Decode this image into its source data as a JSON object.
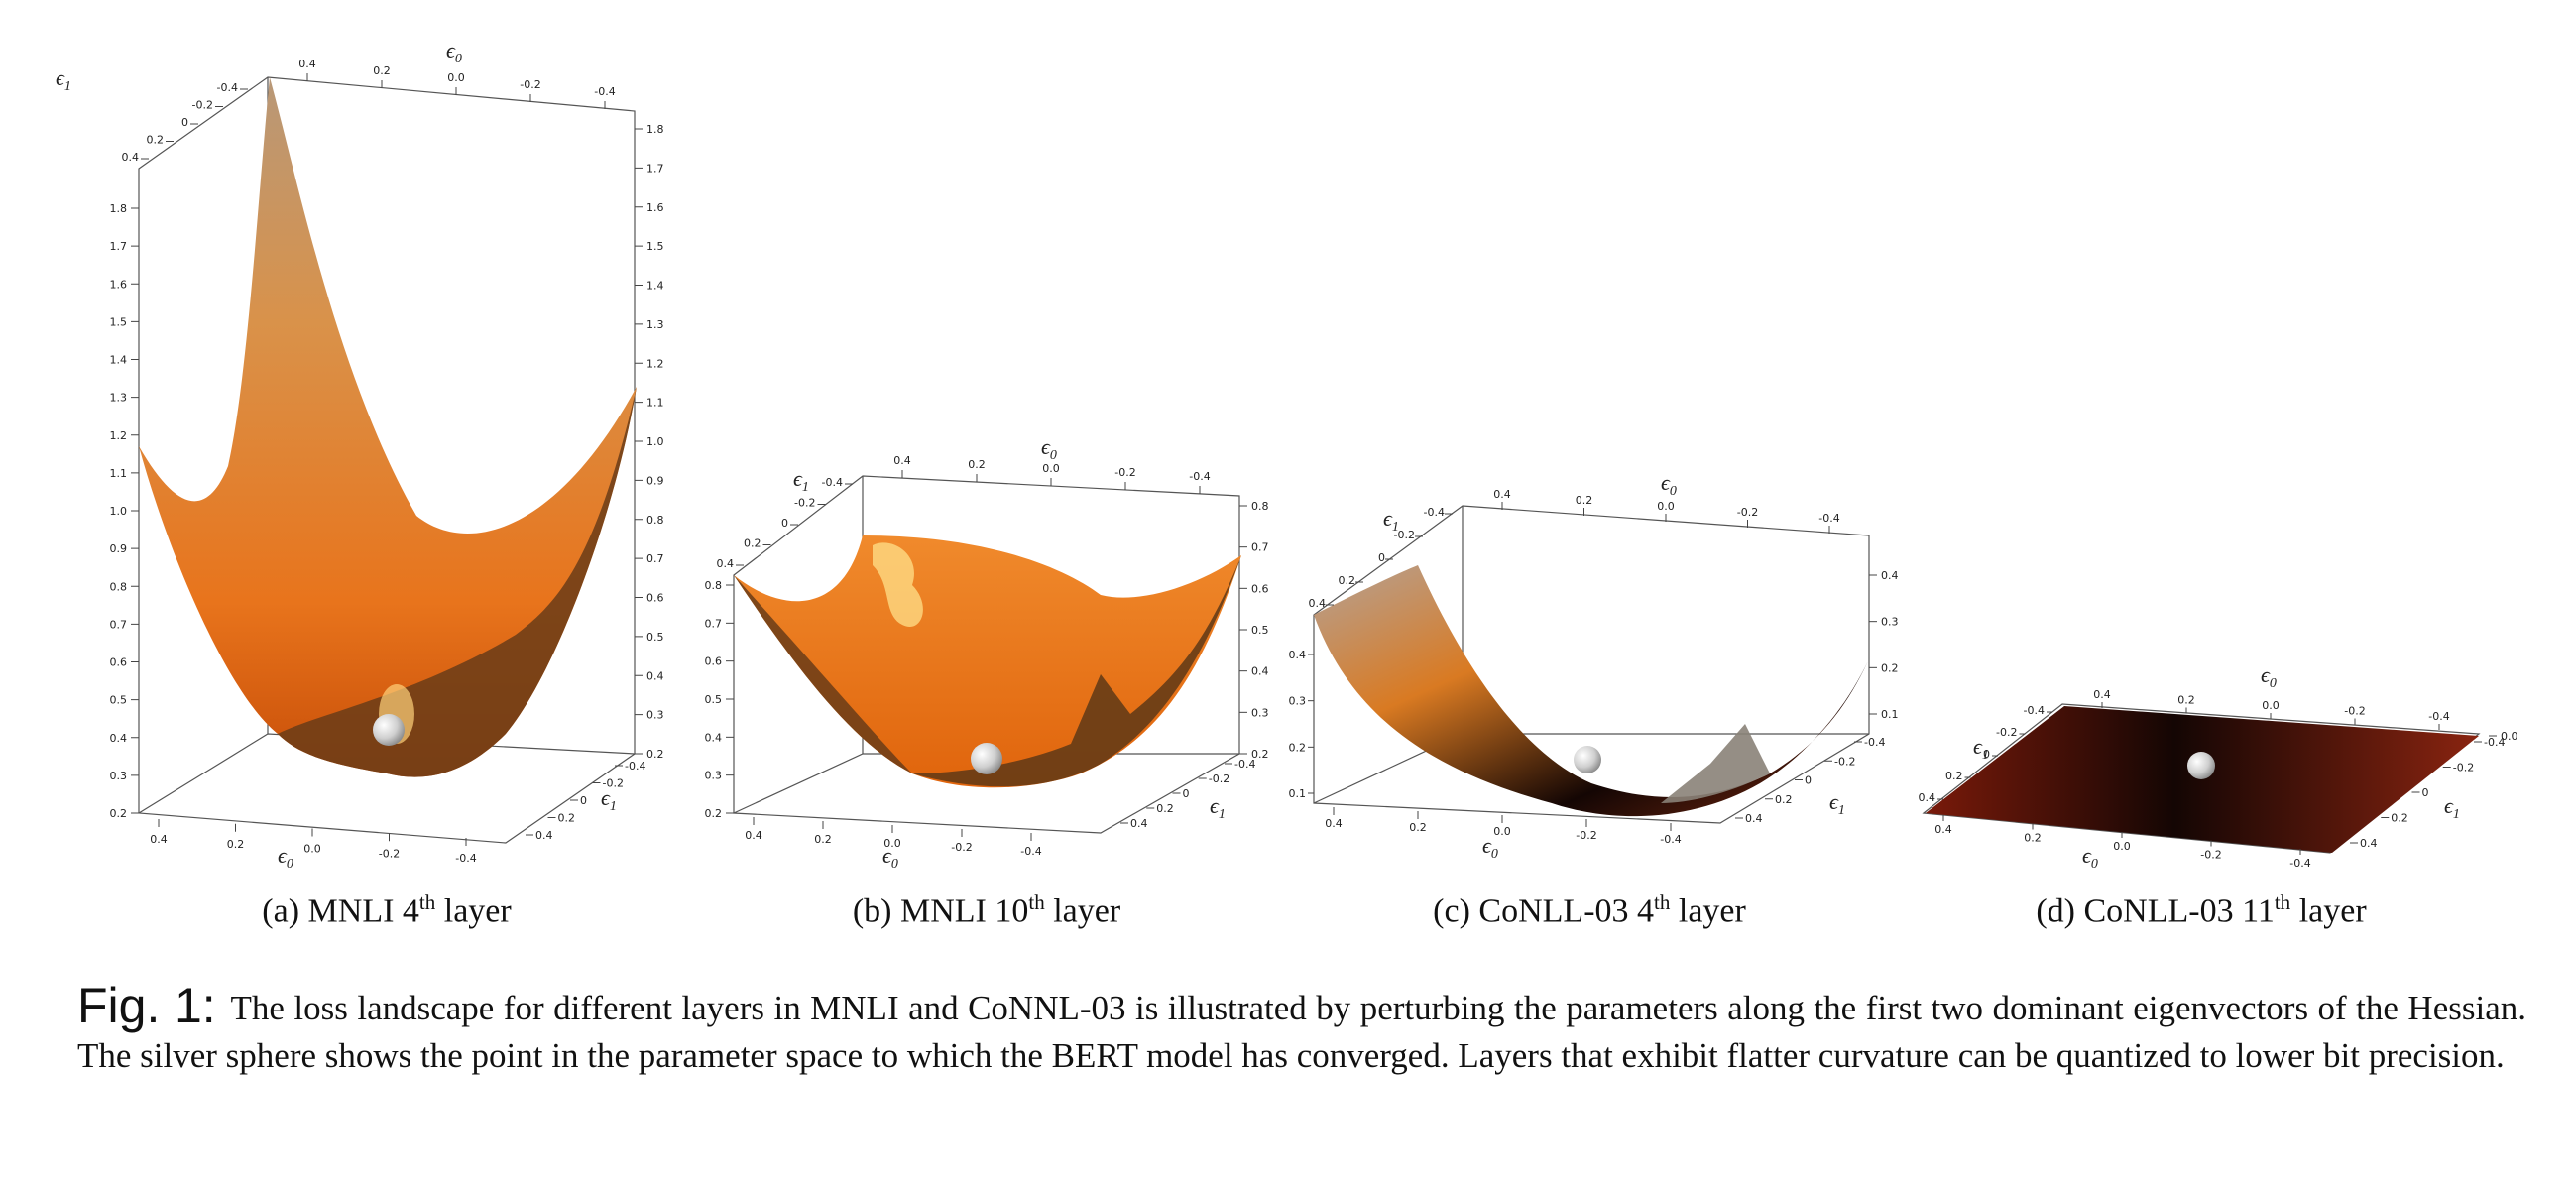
{
  "panels": [
    {
      "letter": "(a)",
      "caption_pre": "MNLI 4",
      "caption_sup": "th",
      "caption_post": " layer",
      "z_ticks": [
        "0.2",
        "0.3",
        "0.4",
        "0.5",
        "0.6",
        "0.7",
        "0.8",
        "0.9",
        "1.0",
        "1.1",
        "1.2",
        "1.3",
        "1.4",
        "1.5",
        "1.6",
        "1.7",
        "1.8"
      ],
      "e0_ticks": [
        "0.4",
        "0.2",
        "0.0",
        "-0.2",
        "-0.4"
      ],
      "e1_ticks": [
        "-0.4",
        "-0.2",
        "0",
        "0.2",
        "0.4"
      ]
    },
    {
      "letter": "(b)",
      "caption_pre": "MNLI 10",
      "caption_sup": "th",
      "caption_post": " layer",
      "z_ticks": [
        "0.2",
        "0.3",
        "0.4",
        "0.5",
        "0.6",
        "0.7",
        "0.8"
      ],
      "e0_ticks": [
        "0.4",
        "0.2",
        "0.0",
        "-0.2",
        "-0.4"
      ],
      "e1_ticks": [
        "-0.4",
        "-0.2",
        "0",
        "0.2",
        "0.4"
      ]
    },
    {
      "letter": "(c)",
      "caption_pre": "CoNLL-03 4",
      "caption_sup": "th",
      "caption_post": " layer",
      "z_ticks": [
        "0.1",
        "0.2",
        "0.3",
        "0.4"
      ],
      "e0_ticks": [
        "0.4",
        "0.2",
        "0.0",
        "-0.2",
        "-0.4"
      ],
      "e1_ticks": [
        "-0.4",
        "-0.2",
        "0",
        "0.2",
        "0.4"
      ]
    },
    {
      "letter": "(d)",
      "caption_pre": "CoNLL-03 11",
      "caption_sup": "th",
      "caption_post": " layer",
      "z_ticks": [
        "0.0"
      ],
      "e0_ticks": [
        "0.4",
        "0.2",
        "0.0",
        "-0.2",
        "-0.4"
      ],
      "e1_ticks": [
        "-0.4",
        "-0.2",
        "0",
        "0.2",
        "0.4"
      ]
    }
  ],
  "axis_labels": {
    "e0": "ϵ",
    "e0_sub": "0",
    "e1": "ϵ",
    "e1_sub": "1"
  },
  "figure_caption": {
    "label": "Fig. 1:",
    "text": "The loss landscape for different layers in MNLI and CoNNL-03 is illustrated by perturbing the parameters along the first two dominant eigenvectors of the Hessian. The silver sphere shows the point in the parameter space to which the BERT model has converged. Layers that exhibit flatter curvature can be quantized to lower bit precision."
  }
}
